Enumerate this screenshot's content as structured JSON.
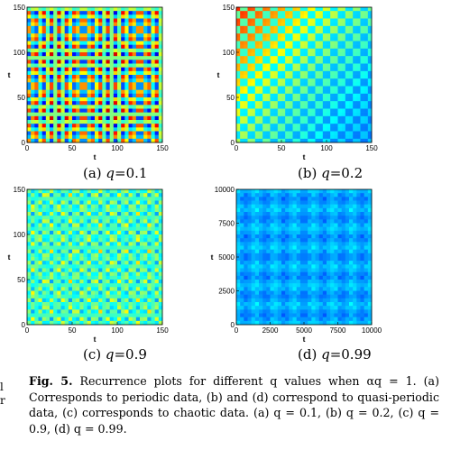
{
  "chart_data": [
    {
      "type": "heatmap",
      "subcaption_prefix": "(a) ",
      "subcaption_var": "q",
      "subcaption_value": "=0.1",
      "xlabel": "t",
      "ylabel": "t",
      "xlim": [
        0,
        150
      ],
      "ylim": [
        0,
        150
      ],
      "xticks": [
        "0",
        "50",
        "100",
        "150"
      ],
      "yticks": [
        "0",
        "50",
        "100",
        "150"
      ],
      "pattern": "periodic",
      "colormap": "jet"
    },
    {
      "type": "heatmap",
      "subcaption_prefix": "(b) ",
      "subcaption_var": "q",
      "subcaption_value": "=0.2",
      "xlabel": "t",
      "ylabel": "t",
      "xlim": [
        0,
        150
      ],
      "ylim": [
        0,
        150
      ],
      "xticks": [
        "0",
        "50",
        "100",
        "150"
      ],
      "yticks": [
        "0",
        "50",
        "100",
        "150"
      ],
      "pattern": "quasi-periodic",
      "colormap": "jet"
    },
    {
      "type": "heatmap",
      "subcaption_prefix": "(c) ",
      "subcaption_var": "q",
      "subcaption_value": "=0.9",
      "xlabel": "t",
      "ylabel": "t",
      "xlim": [
        0,
        150
      ],
      "ylim": [
        0,
        150
      ],
      "xticks": [
        "0",
        "50",
        "100",
        "150"
      ],
      "yticks": [
        "0",
        "50",
        "100",
        "150"
      ],
      "pattern": "chaotic",
      "colormap": "jet"
    },
    {
      "type": "heatmap",
      "subcaption_prefix": "(d) ",
      "subcaption_var": "q",
      "subcaption_value": "=0.99",
      "xlabel": "t",
      "ylabel": "t",
      "xlim": [
        0,
        10000
      ],
      "ylim": [
        0,
        10000
      ],
      "xticks": [
        "0",
        "2500",
        "5000",
        "7500",
        "10000"
      ],
      "yticks": [
        "0",
        "2500",
        "5000",
        "7500",
        "10000"
      ],
      "pattern": "quasi-periodic-long",
      "colormap": "jet"
    }
  ],
  "caption": {
    "label": "Fig. 5.",
    "text": " Recurrence plots for different q values when αq = 1. (a) Corresponds to periodic data, (b) and (d) correspond to quasi-periodic data, (c) corresponds to chaotic data. (a) q = 0.1, (b) q = 0.2, (c) q = 0.9, (d) q = 0.99."
  },
  "edge_marks": [
    "l",
    "r"
  ]
}
